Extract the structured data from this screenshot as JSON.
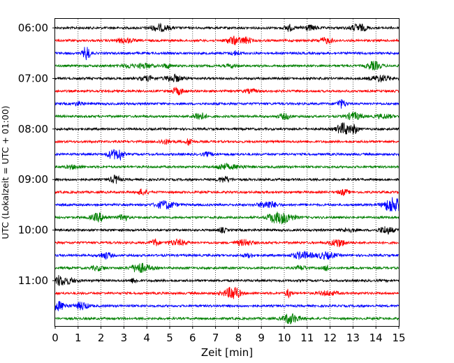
{
  "chart_data": {
    "type": "line",
    "title": "",
    "xlabel": "Zeit  [min]",
    "ylabel": "UTC (Lokalzeit = UTC + 01:00)",
    "xlim": [
      0,
      15
    ],
    "x_ticks": [
      "0",
      "1",
      "2",
      "3",
      "4",
      "5",
      "6",
      "7",
      "8",
      "9",
      "10",
      "11",
      "12",
      "13",
      "14",
      "15"
    ],
    "y_ticks": [
      "06:00",
      "07:00",
      "08:00",
      "09:00",
      "10:00",
      "11:00"
    ],
    "grid": "vertical dotted lines at each minute",
    "trace_color_cycle": [
      "#000000",
      "#ff0000",
      "#0000ff",
      "#008000"
    ],
    "traces": [
      {
        "start": "06:00",
        "color": "black"
      },
      {
        "start": "06:15",
        "color": "red"
      },
      {
        "start": "06:30",
        "color": "blue"
      },
      {
        "start": "06:45",
        "color": "green"
      },
      {
        "start": "07:00",
        "color": "black"
      },
      {
        "start": "07:15",
        "color": "red"
      },
      {
        "start": "07:30",
        "color": "blue"
      },
      {
        "start": "07:45",
        "color": "green"
      },
      {
        "start": "08:00",
        "color": "black"
      },
      {
        "start": "08:15",
        "color": "red"
      },
      {
        "start": "08:30",
        "color": "blue"
      },
      {
        "start": "08:45",
        "color": "green"
      },
      {
        "start": "09:00",
        "color": "black"
      },
      {
        "start": "09:15",
        "color": "red"
      },
      {
        "start": "09:30",
        "color": "blue"
      },
      {
        "start": "09:45",
        "color": "green"
      },
      {
        "start": "10:00",
        "color": "black"
      },
      {
        "start": "10:15",
        "color": "red"
      },
      {
        "start": "10:30",
        "color": "blue"
      },
      {
        "start": "10:45",
        "color": "green"
      },
      {
        "start": "11:00",
        "color": "black"
      },
      {
        "start": "11:15",
        "color": "red"
      },
      {
        "start": "11:30",
        "color": "blue"
      },
      {
        "start": "11:45",
        "color": "green"
      }
    ]
  }
}
